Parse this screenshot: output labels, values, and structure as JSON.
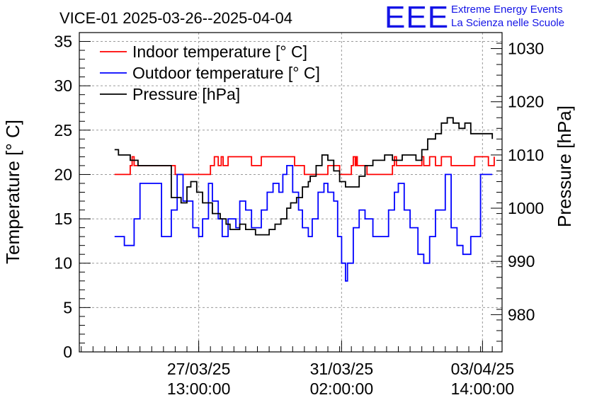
{
  "branding": {
    "logo": "EEE",
    "line1": "Extreme Energy Events",
    "line2": "La Scienza nelle Scuole",
    "color": "#1414e6"
  },
  "chart_data": {
    "type": "line",
    "title": "VICE-01 2025-03-26--2025-04-04",
    "x_axis": {
      "range_hours": [
        0,
        216
      ],
      "tick_labels": [
        {
          "at_hours": 61,
          "date": "27/03/25",
          "time": "13:00:00"
        },
        {
          "at_hours": 134,
          "date": "31/03/25",
          "time": "02:00:00"
        },
        {
          "at_hours": 206,
          "date": "03/04/25",
          "time": "14:00:00"
        }
      ]
    },
    "y_left": {
      "label": "Temperature [° C]",
      "range": [
        0,
        36
      ],
      "ticks": [
        0,
        5,
        10,
        15,
        20,
        25,
        30,
        35
      ]
    },
    "y_right": {
      "label": "Pressure [hPa]",
      "range": [
        973,
        1033
      ],
      "ticks": [
        980,
        990,
        1000,
        1010,
        1020,
        1030
      ]
    },
    "grid": true,
    "legend_position": "top-left",
    "series": [
      {
        "name": "Indoor temperature [° C]",
        "color": "#ff0000",
        "axis": "left",
        "x": [
          18,
          25,
          26,
          27,
          27.5,
          28,
          43,
          49,
          67,
          68,
          69,
          70,
          71,
          72,
          72.5,
          73,
          73.5,
          74,
          76,
          87,
          88,
          92,
          93,
          109,
          110,
          114,
          115,
          126,
          127,
          132,
          133,
          138,
          139,
          140,
          140.5,
          141,
          141.5,
          142,
          146,
          147,
          159,
          160,
          161,
          161.5,
          162,
          174,
          175,
          175.5,
          176,
          178,
          179,
          181,
          182,
          184,
          185,
          189,
          190,
          201,
          202,
          208,
          209,
          211,
          212
        ],
        "y": [
          20,
          20,
          21,
          22,
          22,
          21,
          21,
          20,
          21,
          21,
          22,
          22,
          21,
          21,
          22,
          22,
          21,
          21,
          22,
          22,
          21,
          21,
          22,
          22,
          21,
          21,
          20,
          20,
          21,
          21,
          20,
          20,
          21,
          22,
          22,
          21,
          22,
          21,
          21,
          20,
          20,
          21,
          22,
          22,
          21,
          21,
          22,
          22,
          21,
          21,
          22,
          22,
          21,
          21,
          22,
          22,
          21,
          21,
          22,
          22,
          21,
          21,
          22
        ]
      },
      {
        "name": "Outdoor temperature [° C]",
        "color": "#0000ff",
        "axis": "left",
        "x": [
          18,
          20,
          23,
          25,
          28,
          31,
          42,
          47,
          50,
          53,
          58,
          61,
          63,
          66,
          68,
          71,
          73,
          76,
          80,
          82,
          85,
          88,
          93,
          96,
          99,
          102,
          104,
          106,
          109,
          112,
          114,
          117,
          119,
          122,
          125,
          127,
          130,
          132,
          134,
          136,
          137,
          140,
          143,
          146,
          150,
          155,
          158,
          161,
          163,
          166,
          169,
          173,
          176,
          179,
          182,
          187,
          190,
          193,
          196,
          200,
          205,
          208,
          211
        ],
        "y": [
          13,
          13,
          12,
          12,
          15,
          19,
          13,
          16,
          20,
          17,
          14,
          13,
          15,
          19,
          17,
          15,
          13,
          15,
          14,
          17,
          16,
          14,
          16,
          18,
          19,
          18,
          20,
          21,
          18,
          16,
          14,
          13,
          15,
          18,
          19,
          18,
          17,
          13,
          10,
          8,
          10,
          14,
          16,
          15,
          13,
          13,
          16,
          18,
          19,
          16,
          14,
          11,
          10,
          13,
          16,
          20,
          14,
          12,
          11,
          13,
          20,
          20,
          20
        ]
      },
      {
        "name": "Pressure [hPa]",
        "color": "#000000",
        "axis": "right",
        "x": [
          18,
          20,
          23,
          26,
          28,
          30,
          47,
          52,
          55,
          57,
          60,
          63,
          68,
          72,
          75,
          77,
          79,
          82,
          85,
          90,
          93,
          95,
          97,
          100,
          103,
          106,
          108,
          111,
          114,
          117,
          118,
          121,
          124,
          127,
          130,
          133,
          136,
          140,
          143,
          146,
          150,
          156,
          160,
          165,
          170,
          172,
          175,
          178,
          182,
          185,
          188,
          191,
          194,
          197,
          200,
          203,
          208,
          211
        ],
        "y": [
          1011,
          1010,
          1010,
          1009,
          1009,
          1008,
          1002,
          1001,
          1004,
          1005,
          1003,
          1001,
          999,
          998,
          997,
          996,
          996,
          997,
          996,
          995,
          995,
          995,
          996,
          997,
          998,
          1000,
          1001,
          1002,
          1004,
          1005,
          1006,
          1008,
          1010,
          1009,
          1007,
          1005,
          1004,
          1004,
          1006,
          1008,
          1009,
          1010,
          1009,
          1010,
          1010,
          1009,
          1011,
          1013,
          1014,
          1016,
          1017,
          1016,
          1015,
          1016,
          1014,
          1014,
          1014,
          1013
        ]
      }
    ]
  }
}
